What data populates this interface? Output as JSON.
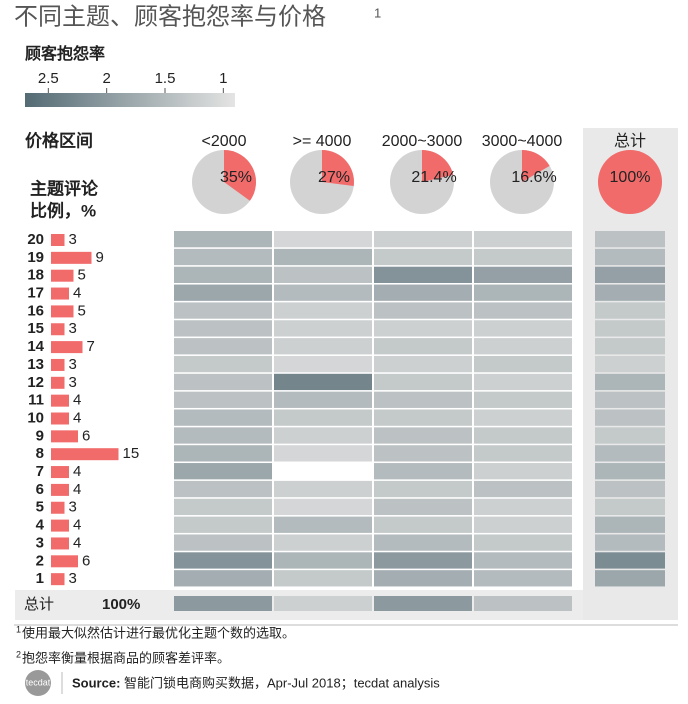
{
  "header": {
    "title": "不同主题、顾客抱怨率与价格",
    "title_note": "1"
  },
  "colorbar": {
    "title": "顾客抱怨率",
    "lim": [
      2.7,
      0.9
    ],
    "ticks": [
      2.5,
      2,
      1.5,
      1
    ],
    "dark": "#647880",
    "light": "#dcdddd"
  },
  "chart_data": [
    {
      "type": "pie",
      "title": "价格区间",
      "categories": [
        "<2000",
        ">= 4000",
        "2000~3000",
        "3000~4000",
        "总计"
      ],
      "values": [
        35,
        27,
        21.4,
        16.6,
        100
      ],
      "value_labels": [
        "35%",
        "27%",
        "21.4%",
        "16.6%",
        "100%"
      ],
      "color": "#f26b6b",
      "rest_color": "#d3d3d3"
    },
    {
      "type": "bar",
      "title": [
        "主题评论",
        "比例，%"
      ],
      "categories": [
        "20",
        "19",
        "18",
        "17",
        "16",
        "15",
        "14",
        "13",
        "12",
        "11",
        "10",
        "9",
        "8",
        "7",
        "6",
        "5",
        "4",
        "3",
        "2",
        "1"
      ],
      "values": [
        3,
        9,
        5,
        4,
        5,
        3,
        7,
        3,
        3,
        4,
        4,
        6,
        15,
        4,
        4,
        3,
        4,
        4,
        6,
        3
      ],
      "color": "#f26b6b",
      "total": {
        "label": "总计",
        "value": 100,
        "value_label": "100%"
      }
    },
    {
      "type": "heatmap",
      "values": [
        [
          1.6,
          1.1,
          1.2,
          1.2,
          1.4
        ],
        [
          1.5,
          1.6,
          1.3,
          1.3,
          1.5
        ],
        [
          1.6,
          1.4,
          2.1,
          1.9,
          1.9
        ],
        [
          1.8,
          1.5,
          1.7,
          1.6,
          1.7
        ],
        [
          1.4,
          1.2,
          1.4,
          1.4,
          1.3
        ],
        [
          1.4,
          1.2,
          1.2,
          1.2,
          1.3
        ],
        [
          1.4,
          1.2,
          1.3,
          1.2,
          1.3
        ],
        [
          1.3,
          1.1,
          1.2,
          1.3,
          1.2
        ],
        [
          1.4,
          2.3,
          1.3,
          1.2,
          1.6
        ],
        [
          1.4,
          1.5,
          1.4,
          1.3,
          1.4
        ],
        [
          1.5,
          1.3,
          1.3,
          1.2,
          1.4
        ],
        [
          1.5,
          1.2,
          1.4,
          1.3,
          1.3
        ],
        [
          1.6,
          1.1,
          1.4,
          1.3,
          1.5
        ],
        [
          1.8,
          null,
          1.5,
          1.2,
          1.6
        ],
        [
          1.4,
          1.2,
          1.3,
          1.4,
          1.4
        ],
        [
          1.3,
          1.1,
          1.4,
          1.2,
          1.3
        ],
        [
          1.3,
          1.5,
          1.3,
          1.2,
          1.6
        ],
        [
          1.4,
          1.2,
          1.5,
          1.3,
          1.5
        ],
        [
          2.1,
          1.6,
          2.0,
          1.5,
          2.2
        ],
        [
          1.7,
          1.3,
          1.7,
          1.5,
          1.8
        ]
      ],
      "total_values": [
        2.0,
        1.2,
        2.0,
        1.4
      ]
    }
  ],
  "footnotes": [
    {
      "mark": "1",
      "text": "使用最大似然估计进行最优化主题个数的选取。"
    },
    {
      "mark": "2",
      "text": "抱怨率衡量根据商品的顾客差评率。"
    }
  ],
  "source": {
    "logo": "tecdat",
    "label": "Source:",
    "text": "智能门锁电商购买数据，Apr-Jul 2018；tecdat analysis"
  }
}
